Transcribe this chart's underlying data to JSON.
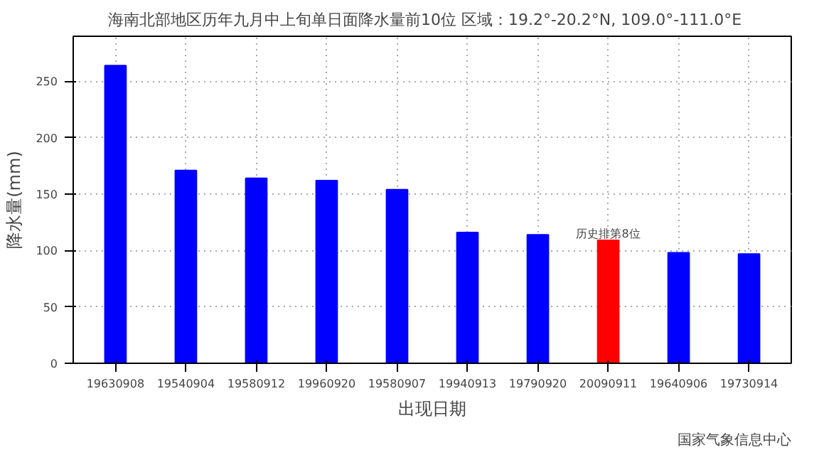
{
  "chart_data": {
    "type": "bar",
    "title": "海南北部地区历年九月中上旬单日面降水量前10位    区域：19.2°-20.2°N, 109.0°-111.0°E",
    "xlabel": "出现日期",
    "ylabel": "降水量(mm)",
    "categories": [
      "19630908",
      "19540904",
      "19580912",
      "19960920",
      "19580907",
      "19940913",
      "19790920",
      "20090911",
      "19640906",
      "19730914"
    ],
    "values": [
      264,
      171,
      164,
      162,
      154,
      116,
      114,
      109,
      98,
      97
    ],
    "colors": [
      "#0000ff",
      "#0000ff",
      "#0000ff",
      "#0000ff",
      "#0000ff",
      "#0000ff",
      "#0000ff",
      "#ff0000",
      "#0000ff",
      "#0000ff"
    ],
    "ylim": [
      0,
      290
    ],
    "yticks": [
      0,
      50,
      100,
      150,
      200,
      250
    ],
    "grid": true,
    "annotations": [
      {
        "text": "历史排第8位",
        "x": "20090911",
        "y": 109
      },
      "国家气象信息中心"
    ]
  }
}
